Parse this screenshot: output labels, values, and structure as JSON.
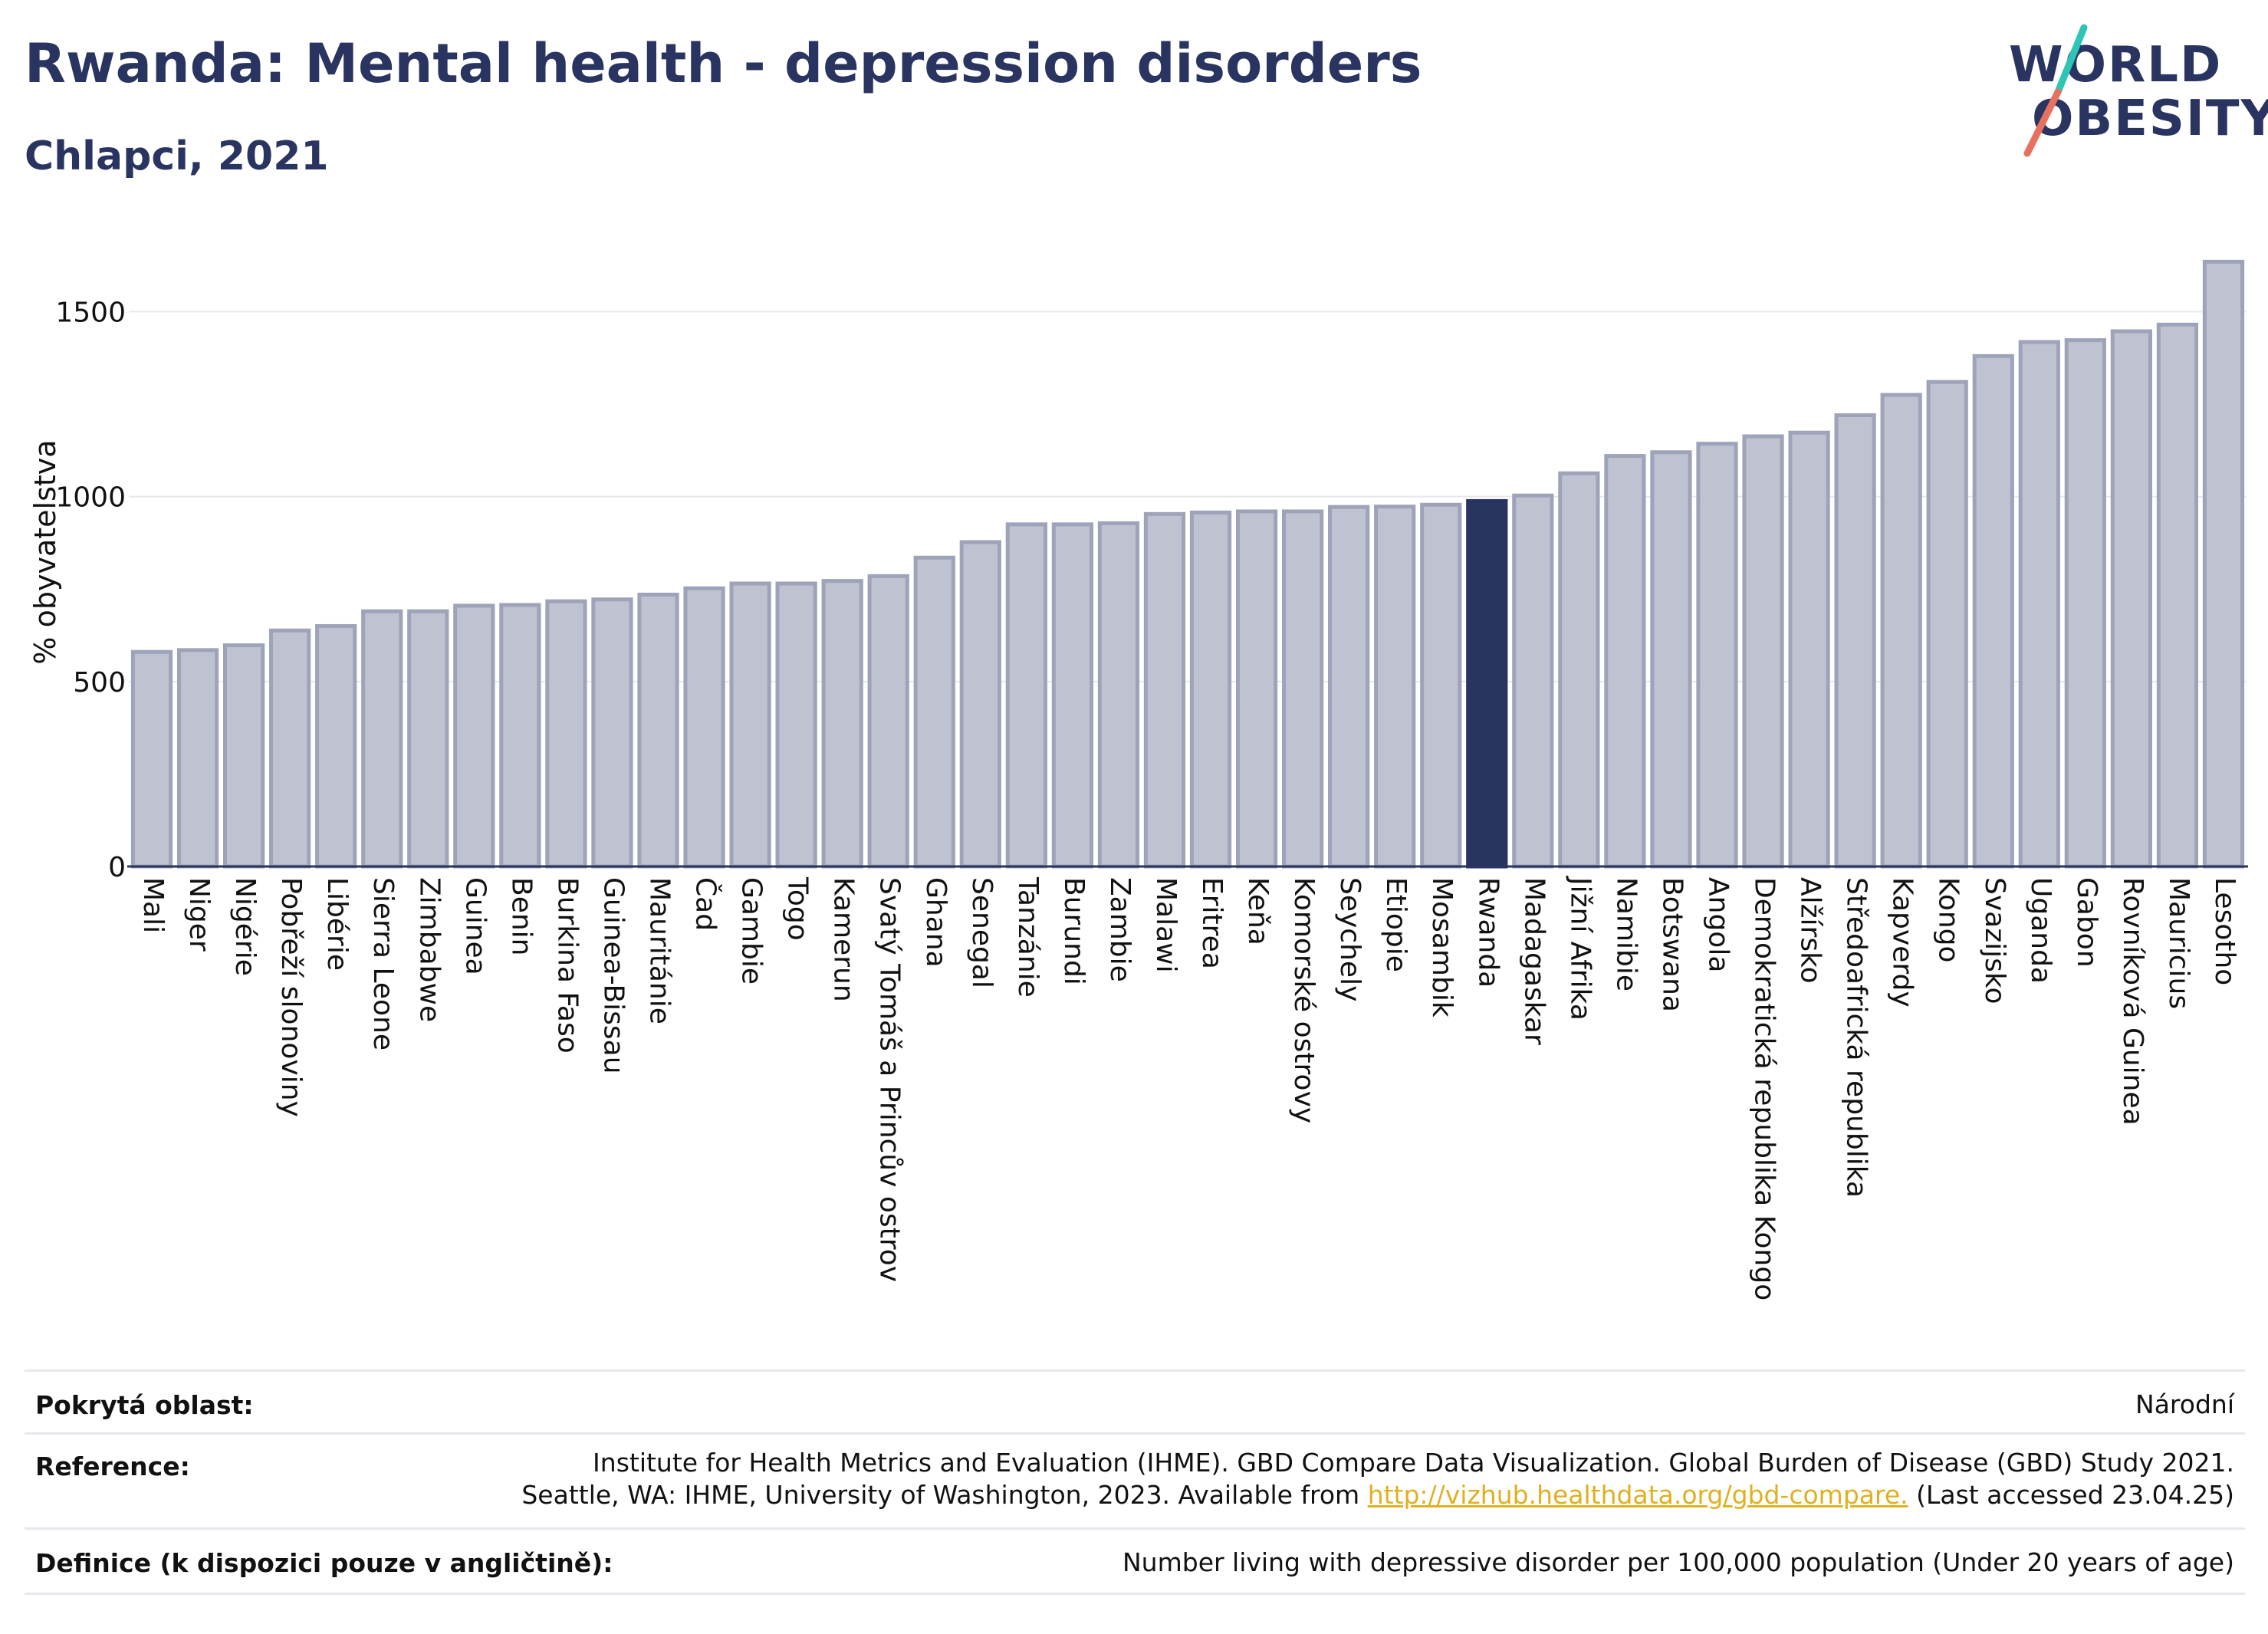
{
  "header": {
    "title": "Rwanda: Mental health - depression disorders",
    "subtitle": "Chlapci, 2021"
  },
  "logo": {
    "line1": "WORLD",
    "line2": "OBESITY",
    "colors": [
      "#2a3460",
      "#2ec4b6",
      "#e8705f"
    ]
  },
  "chart_data": {
    "type": "bar",
    "title": "Rwanda: Mental health - depression disorders",
    "subtitle": "Chlapci, 2021",
    "ylabel": "% obyvatelstva",
    "xlabel": "",
    "ylim": [
      0,
      1700
    ],
    "yticks": [
      0,
      500,
      1000,
      1500
    ],
    "grid": true,
    "highlight": "Rwanda",
    "bar_color": "#bfc2d0",
    "bar_edge_color": "#9ea3b9",
    "highlight_color": "#2a3460",
    "categories": [
      "Mali",
      "Niger",
      "Nigérie",
      "Pobřeží slonoviny",
      "Libérie",
      "Sierra Leone",
      "Zimbabwe",
      "Guinea",
      "Benin",
      "Burkina Faso",
      "Guinea-Bissau",
      "Mauritánie",
      "Čad",
      "Gambie",
      "Togo",
      "Kamerun",
      "Svatý Tomáš a Princův ostrov",
      "Ghana",
      "Senegal",
      "Tanzánie",
      "Burundi",
      "Zambie",
      "Malawi",
      "Eritrea",
      "Keňa",
      "Komorské ostrovy",
      "Seychely",
      "Etiopie",
      "Mosambik",
      "Rwanda",
      "Madagaskar",
      "Jižní Afrika",
      "Namibie",
      "Botswana",
      "Angola",
      "Demokratická republika Kongo",
      "Alžírsko",
      "Středoafrická republika",
      "Kapverdy",
      "Kongo",
      "Svazijsko",
      "Uganda",
      "Gabon",
      "Rovníková Guinea",
      "Mauricius",
      "Lesotho"
    ],
    "values": [
      580,
      585,
      598,
      638,
      650,
      690,
      690,
      705,
      707,
      717,
      722,
      735,
      752,
      765,
      765,
      772,
      785,
      835,
      877,
      925,
      925,
      928,
      953,
      957,
      960,
      960,
      972,
      973,
      978,
      988,
      1003,
      1063,
      1110,
      1120,
      1143,
      1163,
      1173,
      1220,
      1275,
      1310,
      1380,
      1418,
      1423,
      1447,
      1465,
      1635
    ]
  },
  "footer": {
    "coverage_label": "Pokrytá oblast:",
    "coverage_value": "Národní",
    "reference_label": "Reference:",
    "reference_line1": "Institute for Health Metrics and Evaluation (IHME). GBD Compare Data Visualization. Global Burden of Disease (GBD) Study 2021.",
    "reference_line2_prefix": "Seattle, WA: IHME, University of Washington, 2023. Available from ",
    "reference_link": "http://vizhub.healthdata.org/gbd-compare.",
    "reference_line2_suffix": " (Last accessed 23.04.25)",
    "definition_label": "Definice (k dispozici pouze v angličtině):",
    "definition_value": "Number living with depressive disorder per 100,000 population (Under 20 years of age)"
  }
}
